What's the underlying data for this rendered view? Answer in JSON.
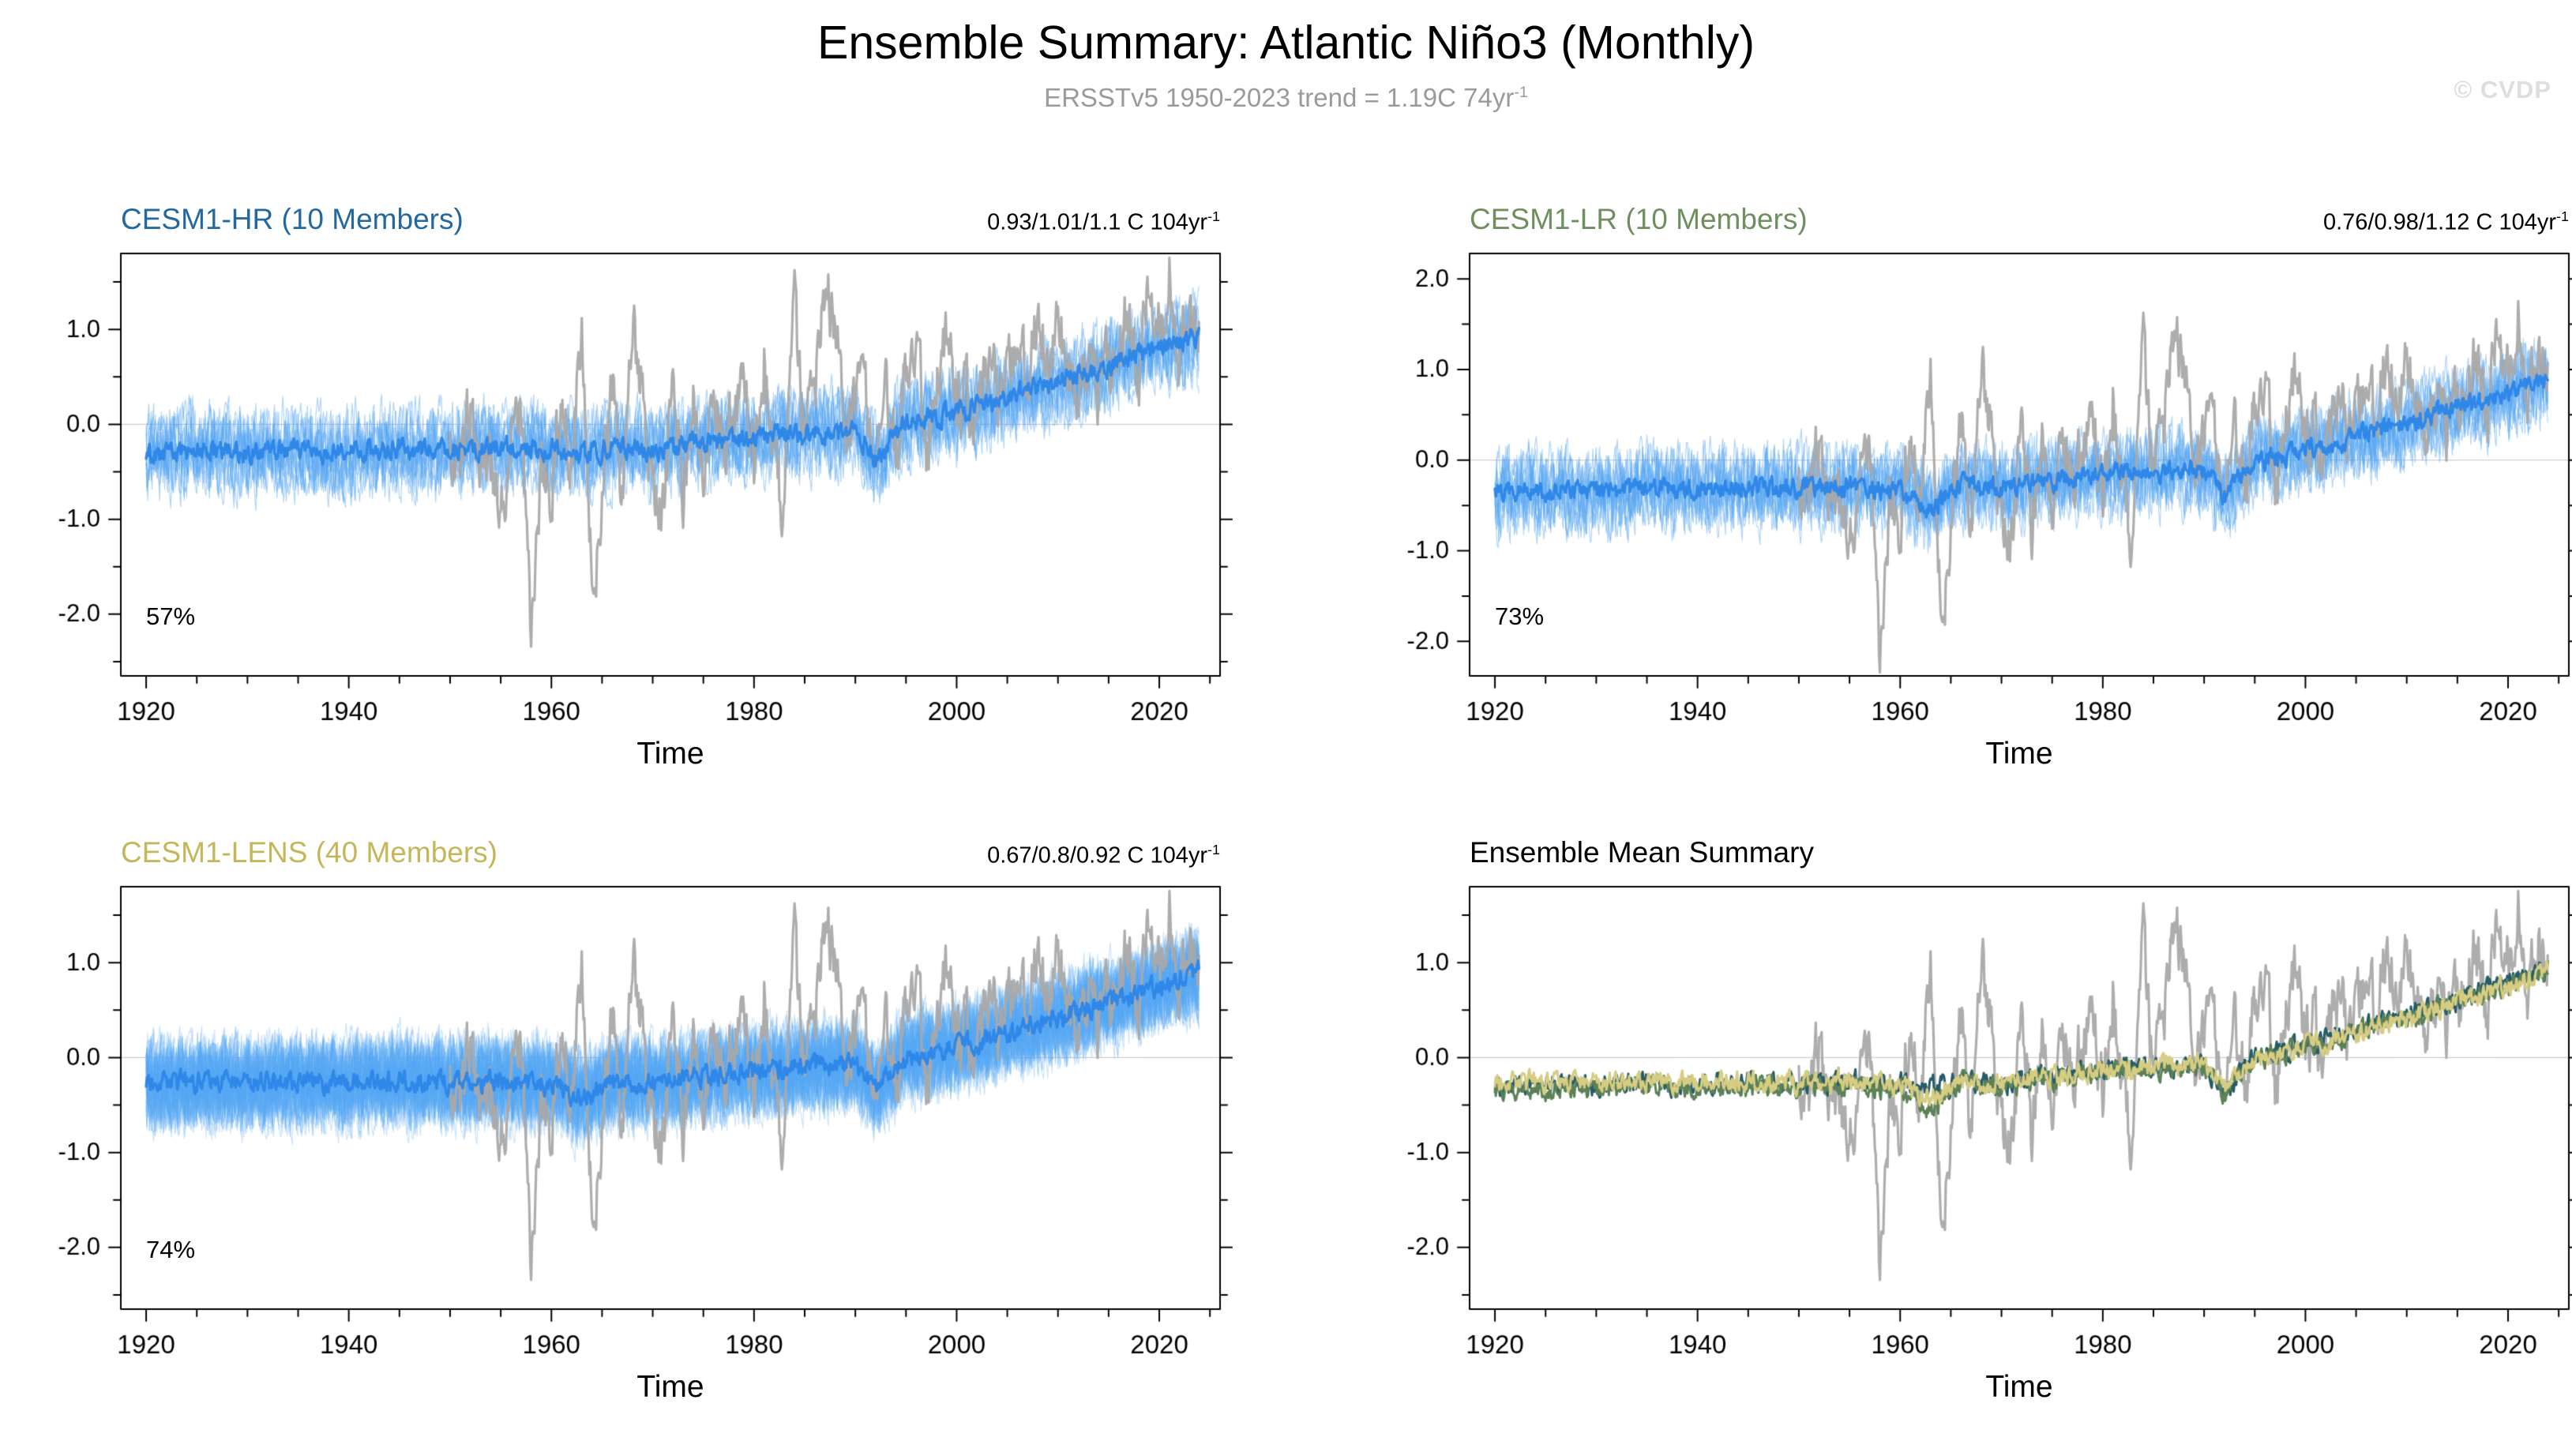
{
  "page": {
    "title": "Ensemble Summary: Atlantic Niño3 (Monthly)",
    "subtitle_main": "ERSSTv5 1950-2023 trend = 1.19C 74yr",
    "subtitle_sup": "-1",
    "watermark": "© CVDP"
  },
  "shared_observations": {
    "name": "ERSSTv5",
    "color": "#a9a9a9",
    "x_start": 1950,
    "x_end": 2023.92,
    "anchor_years": [
      1950,
      1951,
      1952,
      1953,
      1954,
      1955,
      1956,
      1957,
      1958,
      1959,
      1960,
      1961,
      1962,
      1963,
      1964,
      1965,
      1966,
      1967,
      1968,
      1969,
      1970,
      1971,
      1972,
      1973,
      1974,
      1975,
      1976,
      1977,
      1978,
      1979,
      1980,
      1981,
      1982,
      1983,
      1984,
      1985,
      1986,
      1987,
      1988,
      1989,
      1990,
      1991,
      1992,
      1993,
      1994,
      1995,
      1996,
      1997,
      1998,
      1999,
      2000,
      2001,
      2002,
      2003,
      2004,
      2005,
      2006,
      2007,
      2008,
      2009,
      2010,
      2011,
      2012,
      2013,
      2014,
      2015,
      2016,
      2017,
      2018,
      2019,
      2020,
      2021,
      2022,
      2023
    ],
    "anchor_values": [
      -0.2,
      -0.5,
      0.2,
      -0.3,
      -0.6,
      -0.9,
      -0.4,
      0.3,
      -2.2,
      -0.5,
      -0.7,
      0.4,
      -0.5,
      1.3,
      -1.8,
      -0.9,
      0.5,
      -0.9,
      1.1,
      0.3,
      -0.6,
      -0.9,
      0.4,
      -0.8,
      0.5,
      -0.7,
      0.4,
      -0.3,
      0.2,
      0.4,
      -0.4,
      0.7,
      -0.5,
      -0.9,
      1.2,
      -0.3,
      0.4,
      1.4,
      1.0,
      -0.3,
      0.3,
      0.5,
      -0.8,
      0.4,
      -0.3,
      0.6,
      1.0,
      -0.4,
      0.6,
      0.9,
      0.2,
      0.4,
      -0.2,
      0.8,
      0.3,
      0.6,
      0.8,
      0.5,
      1.3,
      0.4,
      1.2,
      0.6,
      0.3,
      0.7,
      0.4,
      0.6,
      0.9,
      1.1,
      0.5,
      1.4,
      1.0,
      1.6,
      0.7,
      1.2
    ]
  },
  "chart_data": [
    {
      "id": "cesm1-hr",
      "type": "line",
      "title": "CESM1-HR (10 Members)",
      "title_color": "#2468a0",
      "trend_label": "0.93/1.01/1.1 C 104yr",
      "trend_sup": "-1",
      "pct_label": "57%",
      "xlabel": "Time",
      "xlim": [
        1917.5,
        2026
      ],
      "ylim": [
        -2.65,
        1.8
      ],
      "xticks": [
        1920,
        1940,
        1960,
        1980,
        2000,
        2020
      ],
      "yticks": [
        -2,
        -1,
        0,
        1
      ],
      "n_members": 10,
      "member_color": "#55a6f2",
      "mean_color": "#2f87e8",
      "show_obs": true,
      "data_x_range": [
        1920,
        2023.92
      ],
      "mean_anchor_years": [
        1920,
        1925,
        1930,
        1935,
        1940,
        1945,
        1950,
        1955,
        1960,
        1963,
        1966,
        1970,
        1975,
        1980,
        1985,
        1990,
        1992,
        1995,
        2000,
        2005,
        2010,
        2015,
        2020,
        2023
      ],
      "mean_anchor_values": [
        -0.32,
        -0.28,
        -0.3,
        -0.27,
        -0.3,
        -0.26,
        -0.28,
        -0.24,
        -0.28,
        -0.33,
        -0.25,
        -0.27,
        -0.2,
        -0.15,
        -0.1,
        -0.05,
        -0.38,
        0.02,
        0.12,
        0.28,
        0.45,
        0.6,
        0.8,
        0.92
      ]
    },
    {
      "id": "cesm1-lr",
      "type": "line",
      "title": "CESM1-LR (10 Members)",
      "title_color": "#6f8f60",
      "trend_label": "0.76/0.98/1.12 C 104yr",
      "trend_sup": "-1",
      "pct_label": "73%",
      "xlabel": "Time",
      "xlim": [
        1917.5,
        2026
      ],
      "ylim": [
        -2.38,
        2.28
      ],
      "xticks": [
        1920,
        1940,
        1960,
        1980,
        2000,
        2020
      ],
      "yticks": [
        -2,
        -1,
        0,
        1,
        2
      ],
      "n_members": 10,
      "member_color": "#55a6f2",
      "mean_color": "#2f87e8",
      "show_obs": true,
      "data_x_range": [
        1920,
        2023.92
      ],
      "mean_anchor_years": [
        1920,
        1925,
        1930,
        1935,
        1940,
        1945,
        1950,
        1955,
        1960,
        1963,
        1966,
        1970,
        1975,
        1980,
        1985,
        1990,
        1992,
        1995,
        2000,
        2005,
        2010,
        2015,
        2020,
        2023
      ],
      "mean_anchor_values": [
        -0.38,
        -0.33,
        -0.35,
        -0.3,
        -0.33,
        -0.3,
        -0.32,
        -0.28,
        -0.35,
        -0.55,
        -0.28,
        -0.3,
        -0.22,
        -0.18,
        -0.12,
        -0.08,
        -0.42,
        0.0,
        0.1,
        0.25,
        0.42,
        0.58,
        0.72,
        0.85
      ]
    },
    {
      "id": "cesm1-lens",
      "type": "line",
      "title": "CESM1-LENS (40 Members)",
      "title_color": "#c3b75a",
      "trend_label": "0.67/0.8/0.92 C 104yr",
      "trend_sup": "-1",
      "pct_label": "74%",
      "xlabel": "Time",
      "xlim": [
        1917.5,
        2026
      ],
      "ylim": [
        -2.65,
        1.8
      ],
      "xticks": [
        1920,
        1940,
        1960,
        1980,
        2000,
        2020
      ],
      "yticks": [
        -2,
        -1,
        0,
        1
      ],
      "n_members": 40,
      "member_color": "#55a6f2",
      "mean_color": "#2f87e8",
      "show_obs": true,
      "data_x_range": [
        1920,
        2023.92
      ],
      "mean_anchor_years": [
        1920,
        1925,
        1930,
        1935,
        1940,
        1945,
        1950,
        1955,
        1960,
        1963,
        1966,
        1970,
        1975,
        1980,
        1985,
        1990,
        1992,
        1995,
        2000,
        2005,
        2010,
        2015,
        2020,
        2023
      ],
      "mean_anchor_values": [
        -0.28,
        -0.26,
        -0.27,
        -0.25,
        -0.27,
        -0.25,
        -0.27,
        -0.24,
        -0.28,
        -0.42,
        -0.26,
        -0.26,
        -0.2,
        -0.16,
        -0.1,
        -0.06,
        -0.35,
        0.0,
        0.1,
        0.26,
        0.42,
        0.58,
        0.75,
        0.88
      ]
    },
    {
      "id": "ensemble-mean-summary",
      "type": "line",
      "title": "Ensemble Mean Summary",
      "title_color": "#000000",
      "xlabel": "Time",
      "xlim": [
        1917.5,
        2026
      ],
      "ylim": [
        -2.65,
        1.8
      ],
      "xticks": [
        1920,
        1940,
        1960,
        1980,
        2000,
        2020
      ],
      "yticks": [
        -2,
        -1,
        0,
        1
      ],
      "show_obs": true,
      "data_x_range": [
        1920,
        2023.92
      ],
      "series": [
        {
          "name": "CESM1-HR",
          "color": "#255c66",
          "source": 0
        },
        {
          "name": "CESM1-LR",
          "color": "#5c8157",
          "source": 1
        },
        {
          "name": "CESM1-LENS",
          "color": "#d6cc82",
          "source": 2
        }
      ]
    }
  ]
}
